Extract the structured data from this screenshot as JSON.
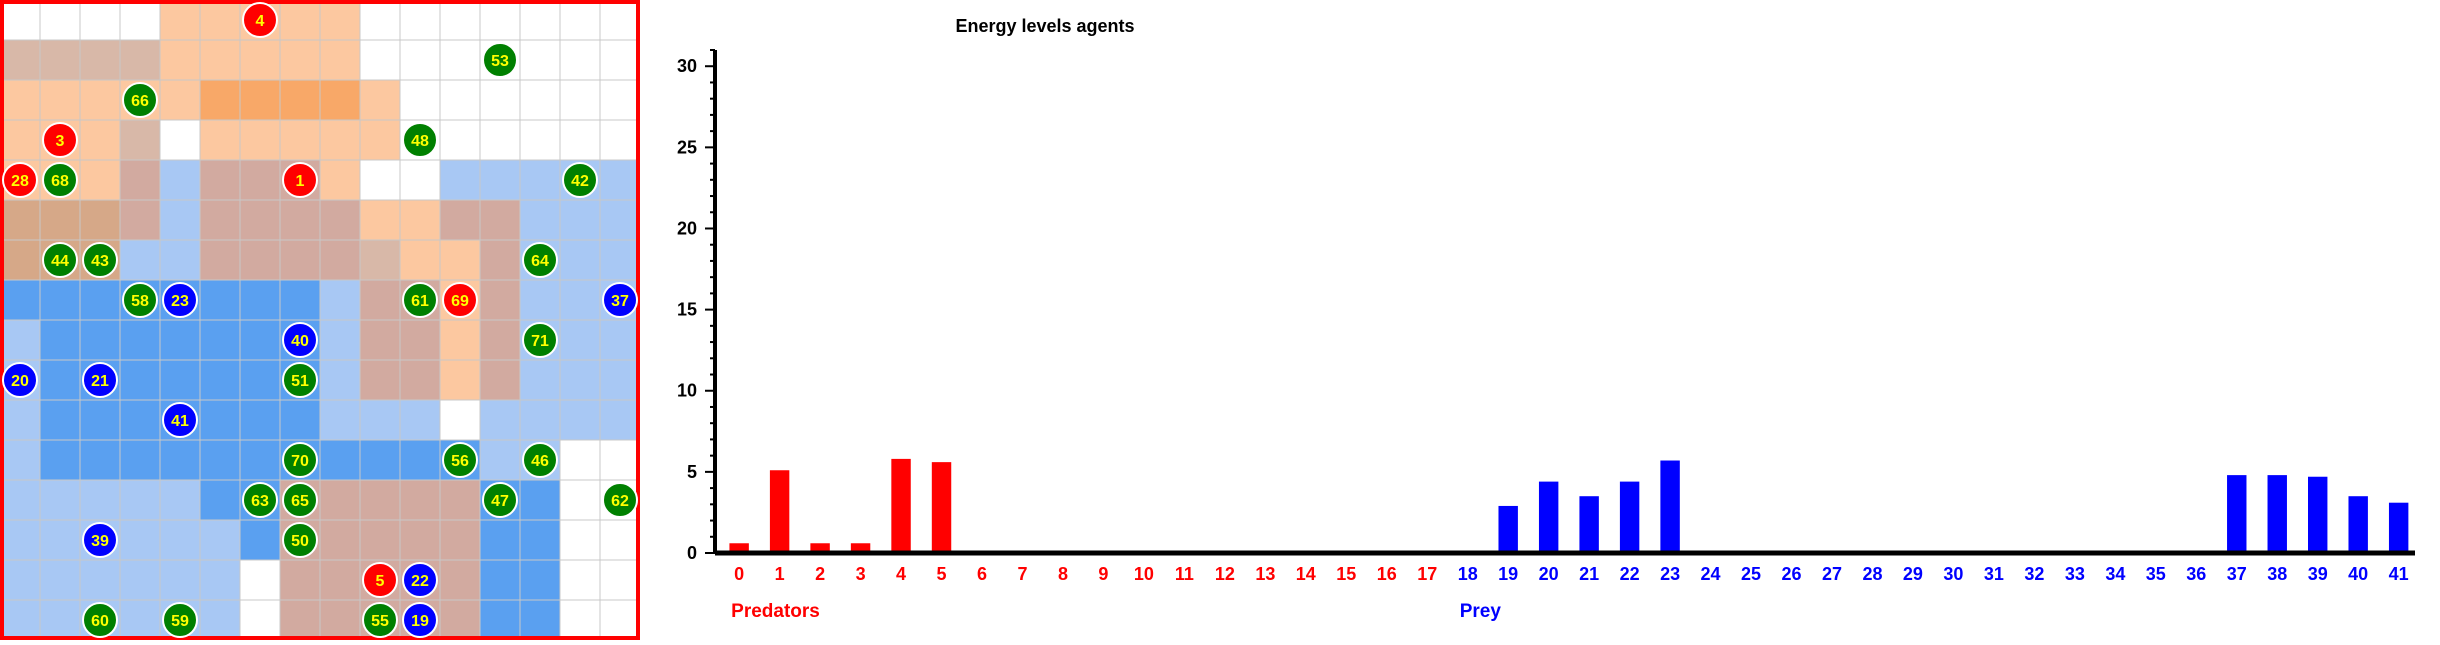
{
  "grid": {
    "rows": 16,
    "cols": 16,
    "colors": {
      "predator_zone": "#fcc8a0",
      "predator_zone_strong": "#f8a868",
      "prey_zone": "#a8c8f4",
      "prey_zone_strong": "#5aa0f0",
      "overlap_zone": "#d2aaa0",
      "border_red": "#ff0000",
      "predator_agent": "#ff0000",
      "prey_agent": "#0000ff",
      "food_agent": "#008000",
      "agent_label": "#ffff00"
    },
    "agents": [
      {
        "id": "4",
        "kind": "predator",
        "row": 0,
        "col": 6
      },
      {
        "id": "53",
        "kind": "food",
        "row": 1,
        "col": 12
      },
      {
        "id": "66",
        "kind": "food",
        "row": 2,
        "col": 3
      },
      {
        "id": "3",
        "kind": "predator",
        "row": 3,
        "col": 1
      },
      {
        "id": "48",
        "kind": "food",
        "row": 3,
        "col": 10
      },
      {
        "id": "28",
        "kind": "predator",
        "row": 4,
        "col": 0
      },
      {
        "id": "68",
        "kind": "food",
        "row": 4,
        "col": 1
      },
      {
        "id": "1",
        "kind": "predator",
        "row": 4,
        "col": 7
      },
      {
        "id": "42",
        "kind": "food",
        "row": 4,
        "col": 14
      },
      {
        "id": "44",
        "kind": "food",
        "row": 6,
        "col": 1
      },
      {
        "id": "43",
        "kind": "food",
        "row": 6,
        "col": 2
      },
      {
        "id": "64",
        "kind": "food",
        "row": 6,
        "col": 13
      },
      {
        "id": "58",
        "kind": "food",
        "row": 7,
        "col": 3
      },
      {
        "id": "23",
        "kind": "prey",
        "row": 7,
        "col": 4
      },
      {
        "id": "61",
        "kind": "food",
        "row": 7,
        "col": 10
      },
      {
        "id": "69",
        "kind": "predator",
        "row": 7,
        "col": 11
      },
      {
        "id": "37",
        "kind": "prey",
        "row": 7,
        "col": 15
      },
      {
        "id": "40",
        "kind": "prey",
        "row": 8,
        "col": 7
      },
      {
        "id": "71",
        "kind": "food",
        "row": 8,
        "col": 13
      },
      {
        "id": "20",
        "kind": "prey",
        "row": 9,
        "col": 0
      },
      {
        "id": "21",
        "kind": "prey",
        "row": 9,
        "col": 2
      },
      {
        "id": "51",
        "kind": "food",
        "row": 9,
        "col": 7
      },
      {
        "id": "41",
        "kind": "prey",
        "row": 10,
        "col": 4
      },
      {
        "id": "70",
        "kind": "food",
        "row": 11,
        "col": 7
      },
      {
        "id": "56",
        "kind": "food",
        "row": 11,
        "col": 11
      },
      {
        "id": "46",
        "kind": "food",
        "row": 11,
        "col": 13
      },
      {
        "id": "63",
        "kind": "food",
        "row": 12,
        "col": 6
      },
      {
        "id": "65",
        "kind": "food",
        "row": 12,
        "col": 7
      },
      {
        "id": "47",
        "kind": "food",
        "row": 12,
        "col": 12
      },
      {
        "id": "62",
        "kind": "food",
        "row": 12,
        "col": 15
      },
      {
        "id": "39",
        "kind": "prey",
        "row": 13,
        "col": 2
      },
      {
        "id": "50",
        "kind": "food",
        "row": 13,
        "col": 7
      },
      {
        "id": "5",
        "kind": "predator",
        "row": 14,
        "col": 9
      },
      {
        "id": "22",
        "kind": "prey",
        "row": 14,
        "col": 10
      },
      {
        "id": "60",
        "kind": "food",
        "row": 15,
        "col": 2
      },
      {
        "id": "59",
        "kind": "food",
        "row": 15,
        "col": 4
      },
      {
        "id": "55",
        "kind": "food",
        "row": 15,
        "col": 9
      },
      {
        "id": "19",
        "kind": "prey",
        "row": 15,
        "col": 10
      }
    ]
  },
  "chart_data": {
    "type": "bar",
    "title": "Energy levels agents",
    "ylim": [
      0,
      31
    ],
    "yticks": [
      0,
      5,
      10,
      15,
      20,
      25,
      30
    ],
    "grid": false,
    "groups": [
      {
        "label": "Predators",
        "color": "#ff0000"
      },
      {
        "label": "Prey",
        "color": "#0000ff"
      }
    ],
    "categories": [
      "0",
      "1",
      "2",
      "3",
      "4",
      "5",
      "6",
      "7",
      "8",
      "9",
      "10",
      "11",
      "12",
      "13",
      "14",
      "15",
      "16",
      "17",
      "18",
      "19",
      "20",
      "21",
      "22",
      "23",
      "24",
      "25",
      "26",
      "27",
      "28",
      "29",
      "30",
      "31",
      "32",
      "33",
      "34",
      "35",
      "36",
      "37",
      "38",
      "39",
      "40",
      "41"
    ],
    "category_group": [
      "Predators",
      "Predators",
      "Predators",
      "Predators",
      "Predators",
      "Predators",
      "Predators",
      "Predators",
      "Predators",
      "Predators",
      "Predators",
      "Predators",
      "Predators",
      "Predators",
      "Predators",
      "Predators",
      "Predators",
      "Predators",
      "Prey",
      "Prey",
      "Prey",
      "Prey",
      "Prey",
      "Prey",
      "Prey",
      "Prey",
      "Prey",
      "Prey",
      "Prey",
      "Prey",
      "Prey",
      "Prey",
      "Prey",
      "Prey",
      "Prey",
      "Prey",
      "Prey",
      "Prey",
      "Prey",
      "Prey",
      "Prey",
      "Prey"
    ],
    "values": [
      0.6,
      5.1,
      0.6,
      0.6,
      5.8,
      5.6,
      0,
      0,
      0,
      0,
      0,
      0,
      0,
      0,
      0,
      0,
      0,
      0,
      0,
      2.9,
      4.4,
      3.5,
      4.4,
      5.7,
      0,
      0,
      0,
      0,
      0,
      0,
      0,
      0,
      0,
      0,
      0,
      0,
      0,
      4.8,
      4.8,
      4.7,
      3.5,
      3.1
    ]
  }
}
